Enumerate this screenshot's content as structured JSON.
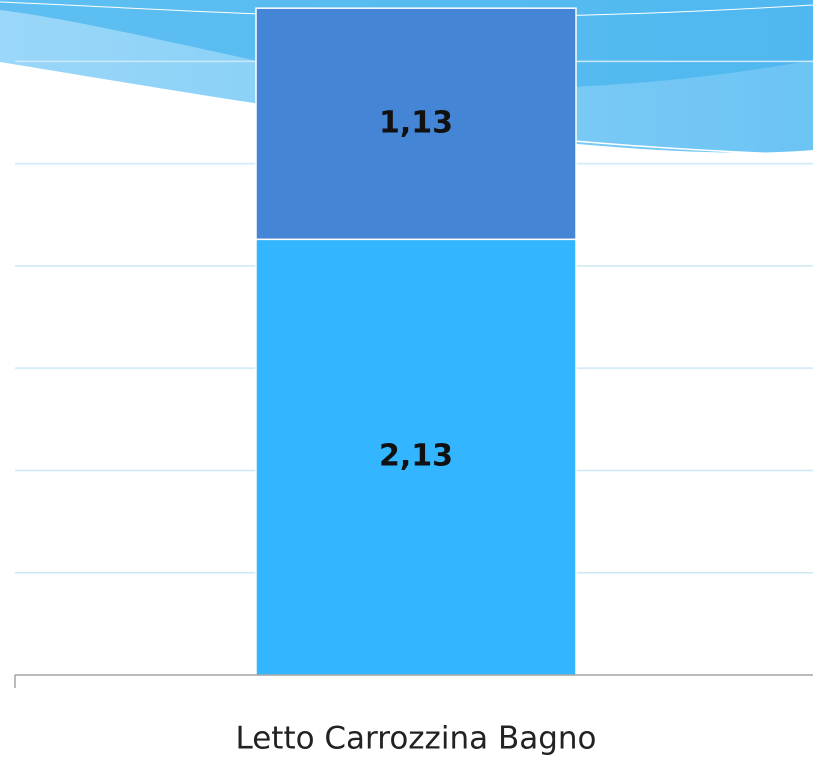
{
  "chart_data": {
    "type": "stacked-bar",
    "categories": [
      "Letto Carrozzina Bagno"
    ],
    "series": [
      {
        "color": "#33b5ff",
        "values": [
          2.13
        ],
        "value_labels": [
          "2,13"
        ]
      },
      {
        "color": "#4585d6",
        "values": [
          1.13
        ],
        "value_labels": [
          "1,13"
        ]
      }
    ],
    "ylim": [
      0,
      3.3
    ],
    "gridlines": [
      0.5,
      1,
      1.5,
      2,
      2.5,
      3
    ],
    "grid": true
  }
}
